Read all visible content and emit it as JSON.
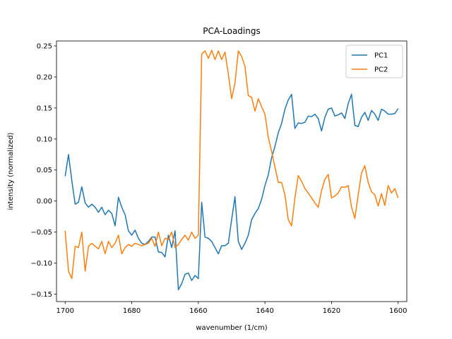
{
  "chart_data": {
    "type": "line",
    "title": "PCA-Loadings",
    "xlabel": "wavenumber (1/cm)",
    "ylabel": "intensity (normalized)",
    "xlim": [
      1702.6,
      1597.4
    ],
    "ylim": [
      -0.162,
      0.258
    ],
    "x_inverted": true,
    "x_ticks": [
      1700,
      1680,
      1660,
      1640,
      1620,
      1600
    ],
    "y_ticks": [
      -0.15,
      -0.1,
      -0.05,
      0.0,
      0.05,
      0.1,
      0.15,
      0.2,
      0.25
    ],
    "legend_position": "top-right",
    "grid": false,
    "x": [
      1700,
      1699,
      1698,
      1697,
      1696,
      1695,
      1694,
      1693,
      1692,
      1691,
      1690,
      1689,
      1688,
      1687,
      1686,
      1685,
      1684,
      1683,
      1682,
      1681,
      1680,
      1679,
      1678,
      1677,
      1676,
      1675,
      1674,
      1673,
      1672,
      1671,
      1670,
      1669,
      1668,
      1667,
      1666,
      1665,
      1664,
      1663,
      1662,
      1661,
      1660,
      1659,
      1658,
      1657,
      1656,
      1655,
      1654,
      1653,
      1652,
      1651,
      1650,
      1649,
      1648,
      1647,
      1646,
      1645,
      1644,
      1643,
      1642,
      1641,
      1640,
      1639,
      1638,
      1637,
      1636,
      1635,
      1634,
      1633,
      1632,
      1631,
      1630,
      1629,
      1628,
      1627,
      1626,
      1625,
      1624,
      1623,
      1622,
      1621,
      1620,
      1619,
      1618,
      1617,
      1616,
      1615,
      1614,
      1613,
      1612,
      1611,
      1610,
      1609,
      1608,
      1607,
      1606,
      1605,
      1604,
      1603,
      1602,
      1601,
      1600
    ],
    "series": [
      {
        "name": "PC1",
        "color": "#1f77b4",
        "values": [
          0.04,
          0.075,
          0.033,
          -0.005,
          -0.002,
          0.023,
          -0.003,
          -0.01,
          -0.005,
          -0.01,
          -0.018,
          -0.01,
          -0.022,
          -0.015,
          -0.02,
          -0.04,
          0.006,
          -0.01,
          -0.022,
          -0.048,
          -0.055,
          -0.047,
          -0.06,
          -0.068,
          -0.07,
          -0.065,
          -0.058,
          -0.058,
          -0.082,
          -0.083,
          -0.09,
          -0.055,
          -0.075,
          -0.048,
          -0.143,
          -0.133,
          -0.118,
          -0.116,
          -0.128,
          -0.12,
          -0.125,
          -0.002,
          -0.058,
          -0.06,
          -0.065,
          -0.075,
          -0.085,
          -0.072,
          -0.072,
          -0.068,
          -0.03,
          0.007,
          -0.065,
          -0.078,
          -0.068,
          -0.055,
          -0.03,
          -0.02,
          -0.012,
          0.003,
          0.025,
          0.042,
          0.07,
          0.088,
          0.11,
          0.125,
          0.148,
          0.163,
          0.172,
          0.117,
          0.126,
          0.125,
          0.127,
          0.137,
          0.136,
          0.14,
          0.133,
          0.113,
          0.135,
          0.148,
          0.15,
          0.137,
          0.139,
          0.142,
          0.133,
          0.157,
          0.172,
          0.122,
          0.12,
          0.135,
          0.143,
          0.13,
          0.146,
          0.14,
          0.13,
          0.148,
          0.145,
          0.14,
          0.14,
          0.141,
          0.149
        ]
      },
      {
        "name": "PC2",
        "color": "#ff7f0e",
        "values": [
          -0.048,
          -0.113,
          -0.125,
          -0.073,
          -0.075,
          -0.05,
          -0.113,
          -0.073,
          -0.068,
          -0.073,
          -0.077,
          -0.065,
          -0.085,
          -0.065,
          -0.075,
          -0.068,
          -0.055,
          -0.085,
          -0.075,
          -0.07,
          -0.073,
          -0.068,
          -0.07,
          -0.072,
          -0.07,
          -0.068,
          -0.06,
          -0.073,
          -0.05,
          -0.072,
          -0.06,
          -0.062,
          -0.05,
          -0.075,
          -0.07,
          -0.062,
          -0.055,
          -0.063,
          -0.05,
          -0.06,
          -0.055,
          0.237,
          0.242,
          0.23,
          0.243,
          0.228,
          0.242,
          0.228,
          0.24,
          0.205,
          0.165,
          0.19,
          0.242,
          0.233,
          0.217,
          0.17,
          0.167,
          0.145,
          0.165,
          0.152,
          0.14,
          0.103,
          0.08,
          0.055,
          0.03,
          0.03,
          0.01,
          -0.03,
          -0.04,
          0.005,
          0.041,
          0.032,
          0.02,
          0.013,
          0.005,
          -0.003,
          -0.01,
          0.017,
          0.035,
          0.043,
          0.005,
          0.008,
          0.013,
          0.023,
          0.022,
          0.025,
          -0.01,
          -0.028,
          0.01,
          0.045,
          0.057,
          0.03,
          0.015,
          0.01,
          -0.008,
          0.012,
          -0.007,
          0.025,
          0.013,
          0.02,
          0.005
        ]
      }
    ]
  }
}
